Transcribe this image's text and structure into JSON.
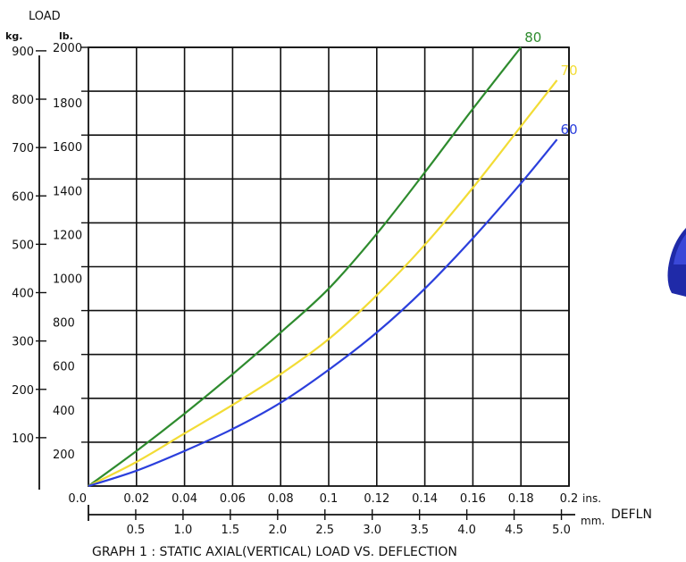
{
  "chart_data": {
    "type": "line",
    "title": "GRAPH 1 : STATIC AXIAL(VERTICAL) LOAD VS. DEFLECTION",
    "ylabel": "LOAD",
    "xlabel": "DEFLN",
    "y_units_primary": "lb.",
    "y_units_secondary": "kg.",
    "x_units_primary": "ins.",
    "x_units_secondary": "mm.",
    "x_ticks_in": [
      "0.0",
      "0.02",
      "0.04",
      "0.06",
      "0.08",
      "0.1",
      "0.12",
      "0.14",
      "0.16",
      "0.18",
      "0.2"
    ],
    "x_ticks_mm": [
      "0.5",
      "1.0",
      "1.5",
      "2.0",
      "2.5",
      "3.0",
      "3.5",
      "4.0",
      "4.5",
      "5.0"
    ],
    "y_ticks_lb": [
      "200",
      "400",
      "600",
      "800",
      "1000",
      "1200",
      "1400",
      "1600",
      "1800",
      "2000"
    ],
    "y_ticks_kg": [
      "100",
      "200",
      "300",
      "400",
      "500",
      "600",
      "700",
      "800",
      "900"
    ],
    "xlim": [
      0,
      0.2
    ],
    "ylim": [
      0,
      2000
    ],
    "grid": true,
    "series": [
      {
        "name": "80",
        "color": "#2e8b2e",
        "x": [
          0,
          0.02,
          0.04,
          0.06,
          0.08,
          0.1,
          0.12,
          0.14,
          0.16,
          0.18
        ],
        "y": [
          0,
          160,
          330,
          510,
          700,
          900,
          1150,
          1430,
          1720,
          2000
        ]
      },
      {
        "name": "70",
        "color": "#f2dc35",
        "x": [
          0,
          0.02,
          0.04,
          0.06,
          0.08,
          0.1,
          0.12,
          0.14,
          0.16,
          0.18,
          0.195
        ],
        "y": [
          0,
          110,
          240,
          370,
          510,
          670,
          870,
          1100,
          1360,
          1640,
          1850
        ]
      },
      {
        "name": "60",
        "color": "#2b3fdc",
        "x": [
          0,
          0.02,
          0.04,
          0.06,
          0.08,
          0.1,
          0.12,
          0.14,
          0.16,
          0.18,
          0.195
        ],
        "y": [
          0,
          70,
          160,
          260,
          380,
          530,
          700,
          900,
          1130,
          1380,
          1580
        ]
      }
    ]
  }
}
